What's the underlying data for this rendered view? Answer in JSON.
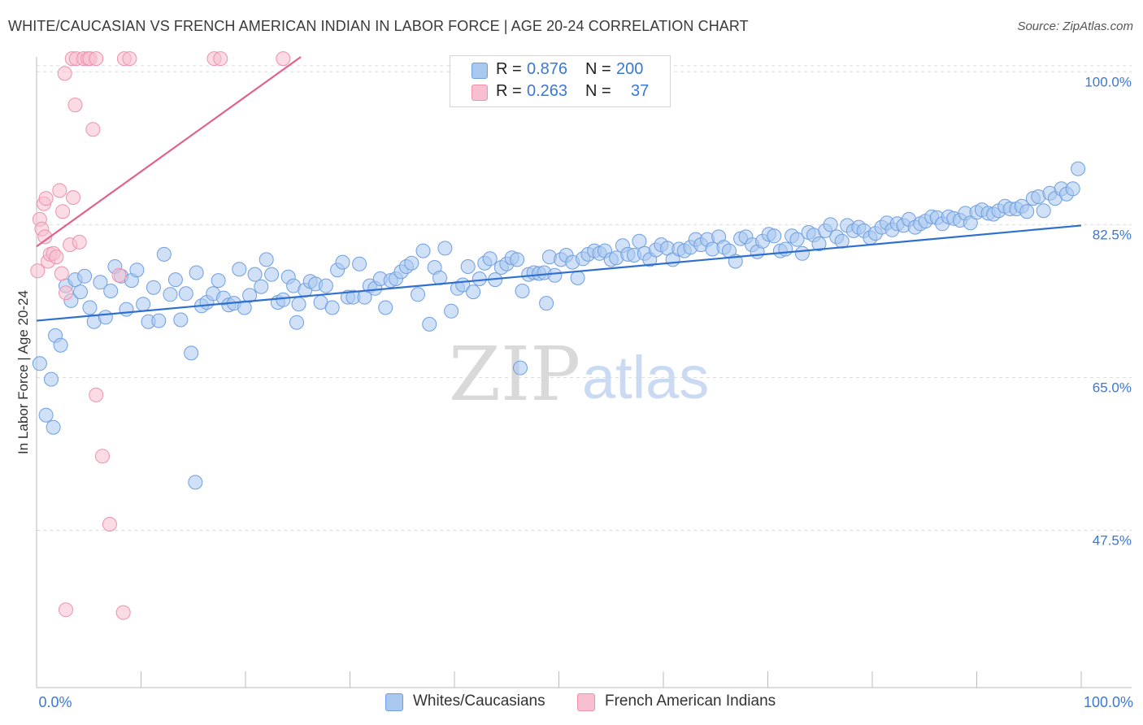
{
  "title": "WHITE/CAUCASIAN VS FRENCH AMERICAN INDIAN IN LABOR FORCE | AGE 20-24 CORRELATION CHART",
  "source": "Source: ZipAtlas.com",
  "watermark": {
    "zip": "ZIP",
    "atlas": "atlas"
  },
  "colors": {
    "blue_fill": "#a9c8f0",
    "blue_stroke": "#6f9fe0",
    "blue_line": "#2f6fcf",
    "pink_fill": "#f7bfd0",
    "pink_stroke": "#ee92ae",
    "pink_line": "#e0628c",
    "axis_label": "#3a78d4",
    "grid": "#dddddd"
  },
  "legend": {
    "rows": [
      {
        "r_label": "R =",
        "r_value": "0.876",
        "n_label": "N =",
        "n_value": "200"
      },
      {
        "r_label": "R =",
        "r_value": "0.263",
        "n_label": "N =",
        "n_value": "37"
      }
    ]
  },
  "bottom_legend": {
    "series1": "Whites/Caucasians",
    "series2": "French American Indians"
  },
  "chart_data": {
    "type": "scatter",
    "title": "WHITE/CAUCASIAN VS FRENCH AMERICAN INDIAN IN LABOR FORCE | AGE 20-24 CORRELATION CHART",
    "xlabel": "",
    "ylabel": "In Labor Force | Age 20-24",
    "x_tick_labels": [
      "0.0%",
      "100.0%"
    ],
    "y_tick_labels": [
      "100.0%",
      "82.5%",
      "65.0%",
      "47.5%"
    ],
    "y_ticks": [
      100.0,
      82.5,
      65.0,
      47.5
    ],
    "xlim": [
      0,
      100
    ],
    "ylim": [
      29.5,
      101.7
    ],
    "grid": true,
    "series": [
      {
        "name": "Whites/Caucasians",
        "color": "#a9c8f0",
        "trend": {
          "x0": 0,
          "y0": 71.5,
          "x1": 100,
          "y1": 82.4
        },
        "points": [
          [
            0.3,
            66.6
          ],
          [
            0.9,
            60.7
          ],
          [
            1.4,
            64.8
          ],
          [
            1.8,
            69.8
          ],
          [
            2.3,
            68.7
          ],
          [
            2.8,
            75.5
          ],
          [
            3.3,
            73.8
          ],
          [
            3.7,
            76.2
          ],
          [
            4.2,
            74.8
          ],
          [
            4.6,
            76.6
          ],
          [
            5.1,
            73.0
          ],
          [
            5.5,
            71.4
          ],
          [
            6.1,
            75.9
          ],
          [
            6.6,
            71.9
          ],
          [
            7.1,
            74.9
          ],
          [
            7.5,
            77.7
          ],
          [
            8.1,
            76.6
          ],
          [
            8.6,
            72.8
          ],
          [
            9.1,
            76.1
          ],
          [
            9.6,
            77.3
          ],
          [
            10.2,
            73.4
          ],
          [
            10.7,
            71.4
          ],
          [
            11.2,
            75.3
          ],
          [
            11.7,
            71.5
          ],
          [
            12.2,
            79.1
          ],
          [
            12.8,
            74.5
          ],
          [
            13.3,
            76.2
          ],
          [
            13.8,
            71.6
          ],
          [
            14.3,
            74.6
          ],
          [
            14.8,
            67.8
          ],
          [
            15.3,
            77.0
          ],
          [
            15.8,
            73.2
          ],
          [
            16.3,
            73.6
          ],
          [
            16.9,
            74.6
          ],
          [
            17.4,
            76.1
          ],
          [
            17.9,
            74.1
          ],
          [
            18.4,
            73.3
          ],
          [
            18.9,
            73.5
          ],
          [
            19.4,
            77.4
          ],
          [
            19.9,
            73.0
          ],
          [
            20.4,
            74.4
          ],
          [
            20.9,
            76.8
          ],
          [
            21.5,
            75.4
          ],
          [
            22.0,
            78.5
          ],
          [
            22.5,
            76.8
          ],
          [
            23.1,
            73.6
          ],
          [
            23.6,
            73.9
          ],
          [
            24.1,
            76.5
          ],
          [
            24.6,
            75.5
          ],
          [
            25.1,
            73.4
          ],
          [
            25.7,
            75.0
          ],
          [
            26.2,
            76.0
          ],
          [
            26.7,
            75.7
          ],
          [
            27.2,
            73.6
          ],
          [
            27.7,
            75.5
          ],
          [
            28.3,
            73.0
          ],
          [
            28.8,
            77.3
          ],
          [
            29.3,
            78.2
          ],
          [
            29.8,
            74.2
          ],
          [
            30.3,
            74.2
          ],
          [
            30.9,
            78.0
          ],
          [
            31.4,
            74.2
          ],
          [
            31.9,
            75.5
          ],
          [
            32.4,
            75.2
          ],
          [
            32.9,
            76.3
          ],
          [
            33.4,
            73.0
          ],
          [
            33.9,
            76.1
          ],
          [
            34.4,
            76.3
          ],
          [
            34.9,
            77.1
          ],
          [
            35.4,
            77.7
          ],
          [
            35.9,
            78.1
          ],
          [
            36.5,
            74.5
          ],
          [
            37.0,
            79.5
          ],
          [
            37.6,
            71.1
          ],
          [
            38.1,
            77.6
          ],
          [
            38.6,
            76.4
          ],
          [
            39.1,
            79.8
          ],
          [
            39.7,
            72.6
          ],
          [
            40.3,
            75.2
          ],
          [
            40.8,
            75.6
          ],
          [
            41.3,
            77.7
          ],
          [
            41.8,
            74.8
          ],
          [
            42.4,
            76.3
          ],
          [
            42.9,
            78.1
          ],
          [
            43.4,
            78.6
          ],
          [
            43.9,
            76.2
          ],
          [
            44.5,
            77.6
          ],
          [
            45.0,
            78.0
          ],
          [
            45.5,
            78.7
          ],
          [
            46.0,
            78.5
          ],
          [
            46.5,
            74.9
          ],
          [
            47.1,
            76.8
          ],
          [
            47.6,
            77.0
          ],
          [
            48.1,
            76.9
          ],
          [
            48.6,
            77.0
          ],
          [
            49.1,
            78.8
          ],
          [
            49.6,
            76.7
          ],
          [
            50.2,
            78.5
          ],
          [
            50.7,
            79.0
          ],
          [
            51.3,
            78.2
          ],
          [
            51.8,
            76.4
          ],
          [
            52.3,
            78.6
          ],
          [
            52.8,
            79.1
          ],
          [
            53.4,
            79.5
          ],
          [
            53.9,
            79.2
          ],
          [
            54.4,
            79.5
          ],
          [
            55.0,
            78.5
          ],
          [
            55.5,
            78.7
          ],
          [
            56.1,
            80.1
          ],
          [
            56.6,
            79.1
          ],
          [
            57.2,
            79.0
          ],
          [
            57.7,
            80.6
          ],
          [
            58.2,
            79.2
          ],
          [
            58.7,
            78.5
          ],
          [
            59.3,
            79.6
          ],
          [
            59.8,
            80.2
          ],
          [
            60.4,
            79.8
          ],
          [
            60.9,
            78.5
          ],
          [
            61.5,
            79.7
          ],
          [
            62.0,
            79.5
          ],
          [
            62.6,
            79.9
          ],
          [
            63.1,
            80.8
          ],
          [
            63.6,
            80.2
          ],
          [
            64.2,
            80.8
          ],
          [
            64.7,
            79.7
          ],
          [
            65.3,
            81.1
          ],
          [
            65.8,
            79.9
          ],
          [
            66.3,
            79.5
          ],
          [
            66.9,
            78.3
          ],
          [
            67.4,
            80.9
          ],
          [
            67.9,
            81.1
          ],
          [
            68.5,
            80.2
          ],
          [
            69.0,
            79.4
          ],
          [
            69.5,
            80.6
          ],
          [
            70.1,
            81.4
          ],
          [
            70.6,
            81.2
          ],
          [
            71.2,
            79.5
          ],
          [
            71.7,
            79.7
          ],
          [
            72.3,
            81.2
          ],
          [
            72.8,
            80.8
          ],
          [
            73.3,
            79.2
          ],
          [
            73.9,
            81.6
          ],
          [
            74.4,
            81.3
          ],
          [
            74.9,
            80.3
          ],
          [
            75.5,
            81.8
          ],
          [
            76.0,
            82.5
          ],
          [
            76.6,
            81.1
          ],
          [
            77.1,
            80.6
          ],
          [
            77.6,
            82.4
          ],
          [
            78.2,
            81.8
          ],
          [
            78.7,
            82.2
          ],
          [
            79.2,
            81.8
          ],
          [
            79.8,
            81.0
          ],
          [
            80.3,
            81.5
          ],
          [
            80.9,
            82.2
          ],
          [
            81.4,
            82.7
          ],
          [
            81.9,
            81.9
          ],
          [
            82.4,
            82.6
          ],
          [
            83.0,
            82.4
          ],
          [
            83.5,
            83.1
          ],
          [
            84.1,
            82.2
          ],
          [
            84.6,
            82.6
          ],
          [
            85.1,
            82.9
          ],
          [
            85.7,
            83.4
          ],
          [
            86.2,
            83.3
          ],
          [
            86.7,
            82.6
          ],
          [
            87.3,
            83.4
          ],
          [
            87.8,
            83.2
          ],
          [
            88.4,
            83.0
          ],
          [
            88.9,
            83.8
          ],
          [
            89.4,
            82.7
          ],
          [
            90.0,
            83.9
          ],
          [
            90.5,
            84.2
          ],
          [
            91.1,
            83.8
          ],
          [
            91.6,
            83.7
          ],
          [
            92.1,
            84.1
          ],
          [
            92.7,
            84.6
          ],
          [
            93.2,
            84.3
          ],
          [
            93.8,
            84.3
          ],
          [
            94.3,
            84.6
          ],
          [
            94.8,
            84.0
          ],
          [
            95.4,
            85.5
          ],
          [
            95.9,
            85.7
          ],
          [
            96.4,
            84.1
          ],
          [
            97.0,
            86.1
          ],
          [
            97.5,
            85.5
          ],
          [
            98.1,
            86.6
          ],
          [
            98.6,
            86.0
          ],
          [
            99.2,
            86.6
          ],
          [
            99.7,
            88.9
          ],
          [
            48.8,
            73.5
          ],
          [
            46.3,
            66.1
          ],
          [
            15.2,
            53.0
          ],
          [
            1.6,
            59.3
          ],
          [
            24.9,
            71.3
          ]
        ]
      },
      {
        "name": "French American Indians",
        "color": "#f7bfd0",
        "trend": {
          "x0": 0,
          "y0": 80.0,
          "x1": 25.3,
          "y1": 101.7
        },
        "points": [
          [
            0.1,
            77.2
          ],
          [
            0.3,
            83.1
          ],
          [
            0.5,
            82.0
          ],
          [
            0.8,
            81.1
          ],
          [
            0.7,
            84.9
          ],
          [
            0.9,
            85.5
          ],
          [
            1.1,
            78.3
          ],
          [
            1.3,
            79.1
          ],
          [
            1.6,
            79.2
          ],
          [
            1.9,
            78.8
          ],
          [
            2.2,
            86.4
          ],
          [
            2.5,
            84.0
          ],
          [
            2.8,
            74.7
          ],
          [
            2.4,
            76.9
          ],
          [
            3.2,
            80.2
          ],
          [
            3.5,
            85.6
          ],
          [
            4.1,
            80.5
          ],
          [
            3.4,
            101.5
          ],
          [
            3.8,
            101.5
          ],
          [
            4.5,
            101.5
          ],
          [
            4.9,
            101.5
          ],
          [
            5.1,
            101.5
          ],
          [
            5.7,
            101.5
          ],
          [
            8.4,
            101.5
          ],
          [
            8.9,
            101.5
          ],
          [
            17.0,
            101.5
          ],
          [
            17.6,
            101.5
          ],
          [
            23.6,
            101.5
          ],
          [
            2.7,
            99.8
          ],
          [
            3.7,
            96.2
          ],
          [
            5.4,
            93.4
          ],
          [
            5.7,
            63.0
          ],
          [
            6.3,
            56.0
          ],
          [
            7.0,
            48.2
          ],
          [
            2.8,
            38.4
          ],
          [
            8.3,
            38.1
          ],
          [
            7.9,
            76.7
          ]
        ]
      }
    ]
  }
}
